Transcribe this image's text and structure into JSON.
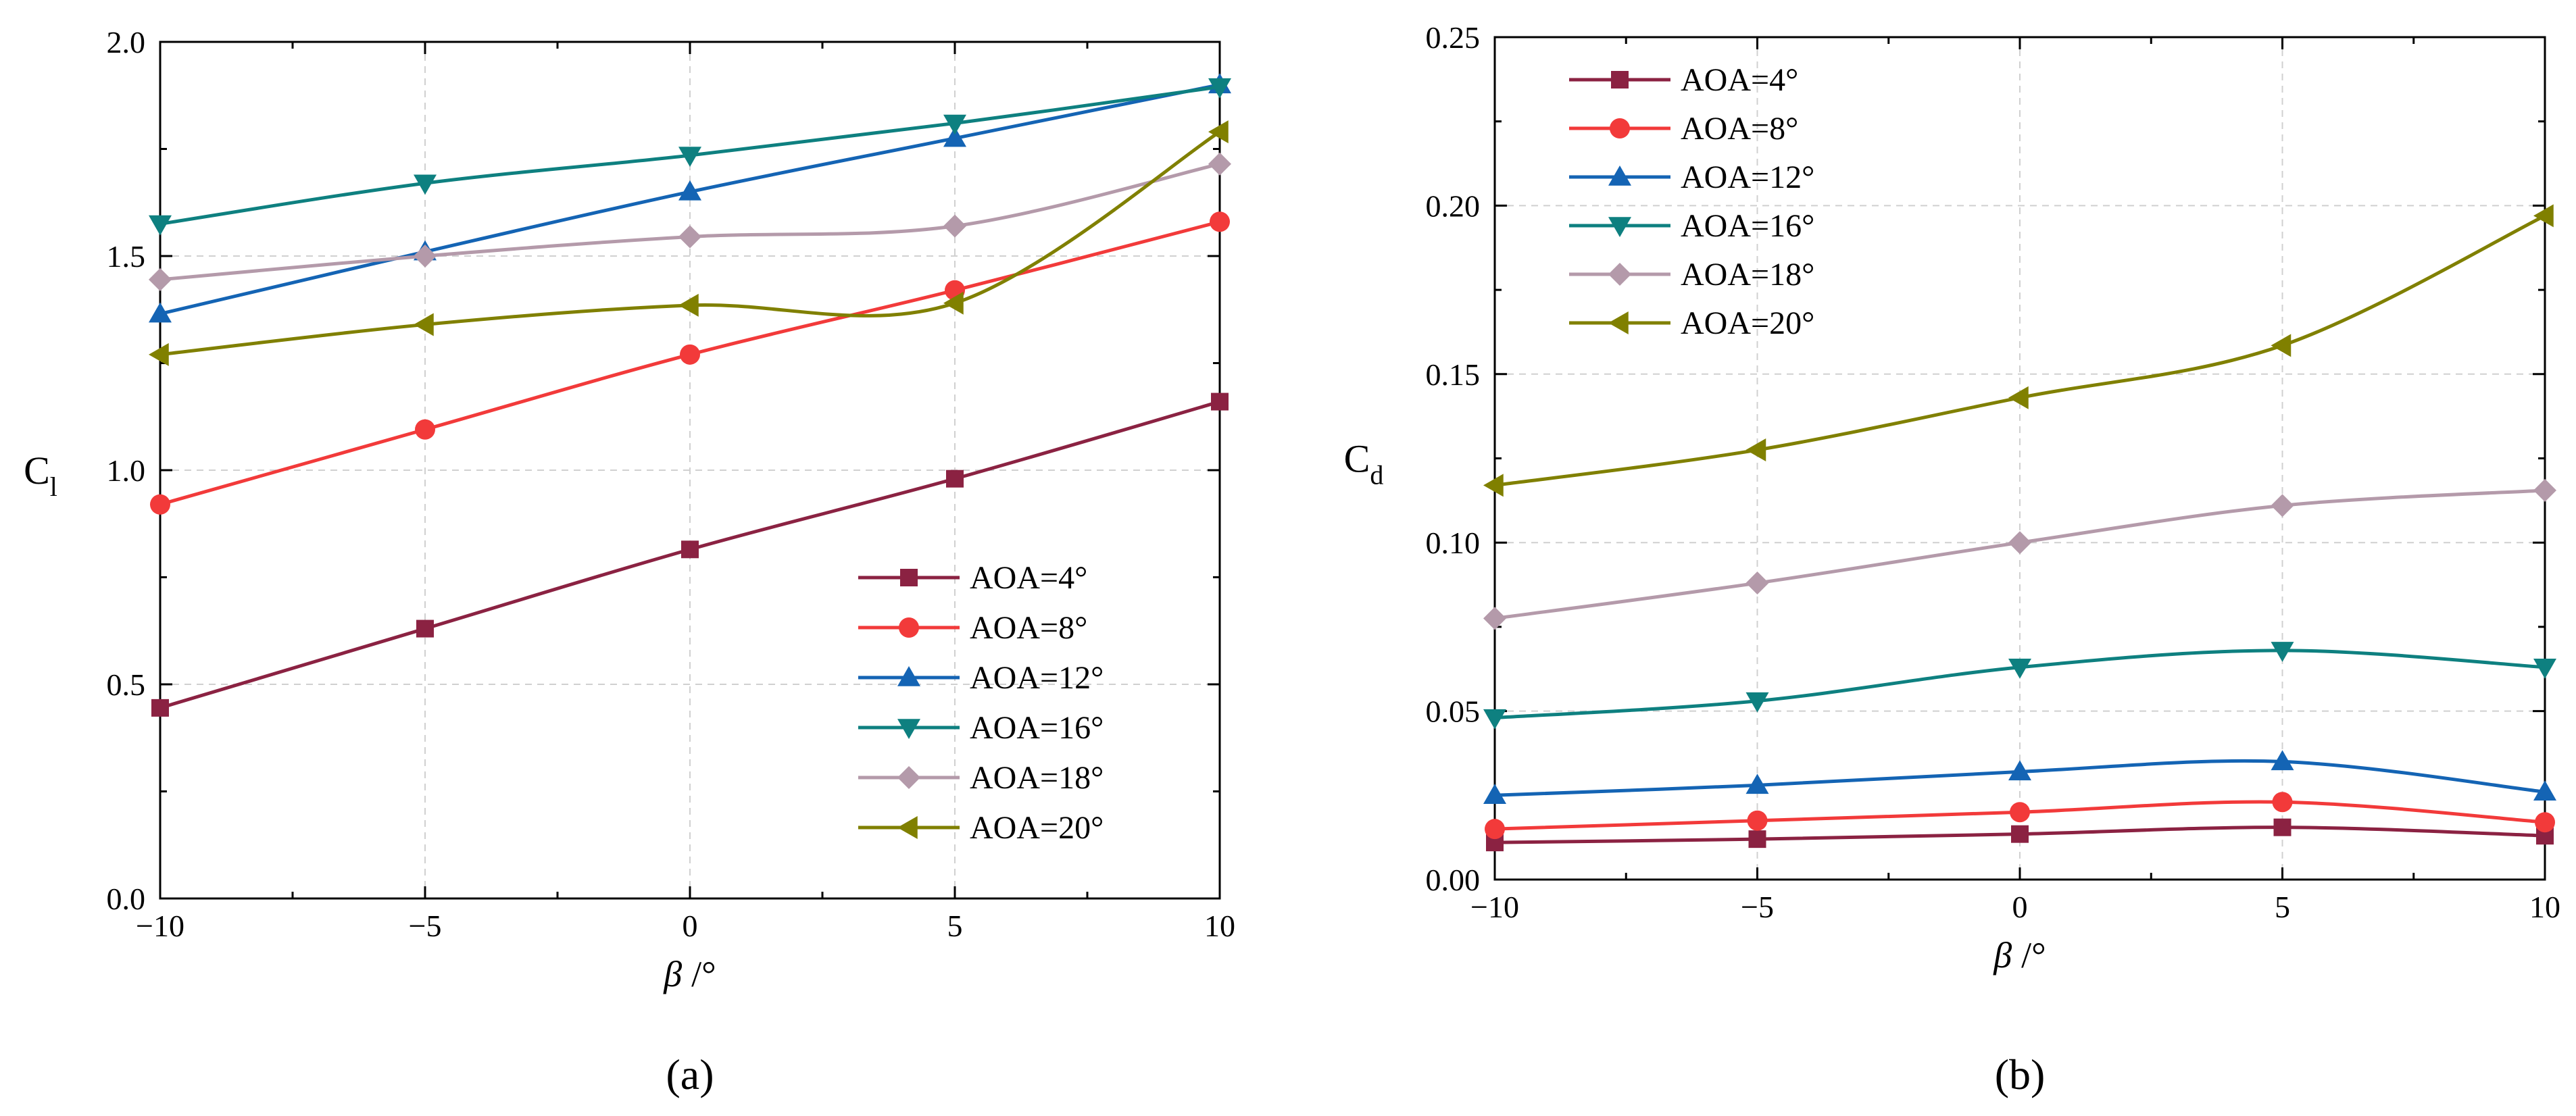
{
  "chart_data": [
    {
      "type": "line",
      "panel_label": "(a)",
      "xlabel_symbol": "β",
      "xlabel_unit": "/°",
      "ylabel_main": "C",
      "ylabel_sub": "l",
      "xlim": [
        -10,
        10
      ],
      "ylim": [
        0,
        2
      ],
      "x_ticks": [
        -10,
        -5,
        0,
        5,
        10
      ],
      "x_tick_labels": [
        "−10",
        "−5",
        "0",
        "5",
        "10"
      ],
      "y_ticks": [
        0,
        0.5,
        1,
        1.5,
        2
      ],
      "y_tick_labels": [
        "0.0",
        "0.5",
        "1.0",
        "1.5",
        "2.0"
      ],
      "grid": true,
      "legend_position": "bottom-right",
      "x": [
        -10,
        -5,
        0,
        5,
        10
      ],
      "series": [
        {
          "name": "AOA=4°",
          "marker": "square",
          "color": "#8b2242",
          "values": [
            0.445,
            0.63,
            0.815,
            0.98,
            1.16
          ]
        },
        {
          "name": "AOA=8°",
          "marker": "circle",
          "color": "#f23a3a",
          "values": [
            0.92,
            1.095,
            1.27,
            1.42,
            1.58
          ]
        },
        {
          "name": "AOA=12°",
          "marker": "triangle-up",
          "color": "#1464b4",
          "values": [
            1.365,
            1.51,
            1.65,
            1.775,
            1.9
          ]
        },
        {
          "name": "AOA=16°",
          "marker": "triangle-down",
          "color": "#0e8080",
          "values": [
            1.575,
            1.67,
            1.735,
            1.81,
            1.895
          ]
        },
        {
          "name": "AOA=18°",
          "marker": "diamond",
          "color": "#b49aaa",
          "values": [
            1.445,
            1.5,
            1.545,
            1.57,
            1.715
          ]
        },
        {
          "name": "AOA=20°",
          "marker": "triangle-left",
          "color": "#808000",
          "values": [
            1.27,
            1.34,
            1.385,
            1.39,
            1.79
          ]
        }
      ]
    },
    {
      "type": "line",
      "panel_label": "(b)",
      "xlabel_symbol": "β",
      "xlabel_unit": "/°",
      "ylabel_main": "C",
      "ylabel_sub": "d",
      "xlim": [
        -10,
        10
      ],
      "ylim": [
        0,
        0.25
      ],
      "x_ticks": [
        -10,
        -5,
        0,
        5,
        10
      ],
      "x_tick_labels": [
        "−10",
        "−5",
        "0",
        "5",
        "10"
      ],
      "y_ticks": [
        0,
        0.05,
        0.1,
        0.15,
        0.2,
        0.25
      ],
      "y_tick_labels": [
        "0.00",
        "0.05",
        "0.10",
        "0.15",
        "0.20",
        "0.25"
      ],
      "grid": true,
      "legend_position": "top-left",
      "x": [
        -10,
        -5,
        0,
        5,
        10
      ],
      "series": [
        {
          "name": "AOA=4°",
          "marker": "square",
          "color": "#8b2242",
          "values": [
            0.011,
            0.012,
            0.0135,
            0.0155,
            0.013
          ]
        },
        {
          "name": "AOA=8°",
          "marker": "circle",
          "color": "#f23a3a",
          "values": [
            0.015,
            0.0175,
            0.02,
            0.023,
            0.017
          ]
        },
        {
          "name": "AOA=12°",
          "marker": "triangle-up",
          "color": "#1464b4",
          "values": [
            0.025,
            0.028,
            0.032,
            0.035,
            0.026
          ]
        },
        {
          "name": "AOA=16°",
          "marker": "triangle-down",
          "color": "#0e8080",
          "values": [
            0.048,
            0.053,
            0.063,
            0.068,
            0.063
          ]
        },
        {
          "name": "AOA=18°",
          "marker": "diamond",
          "color": "#b49aaa",
          "values": [
            0.0775,
            0.088,
            0.1,
            0.111,
            0.1155
          ]
        },
        {
          "name": "AOA=20°",
          "marker": "triangle-left",
          "color": "#808000",
          "values": [
            0.117,
            0.1275,
            0.143,
            0.1585,
            0.197
          ]
        }
      ]
    }
  ]
}
